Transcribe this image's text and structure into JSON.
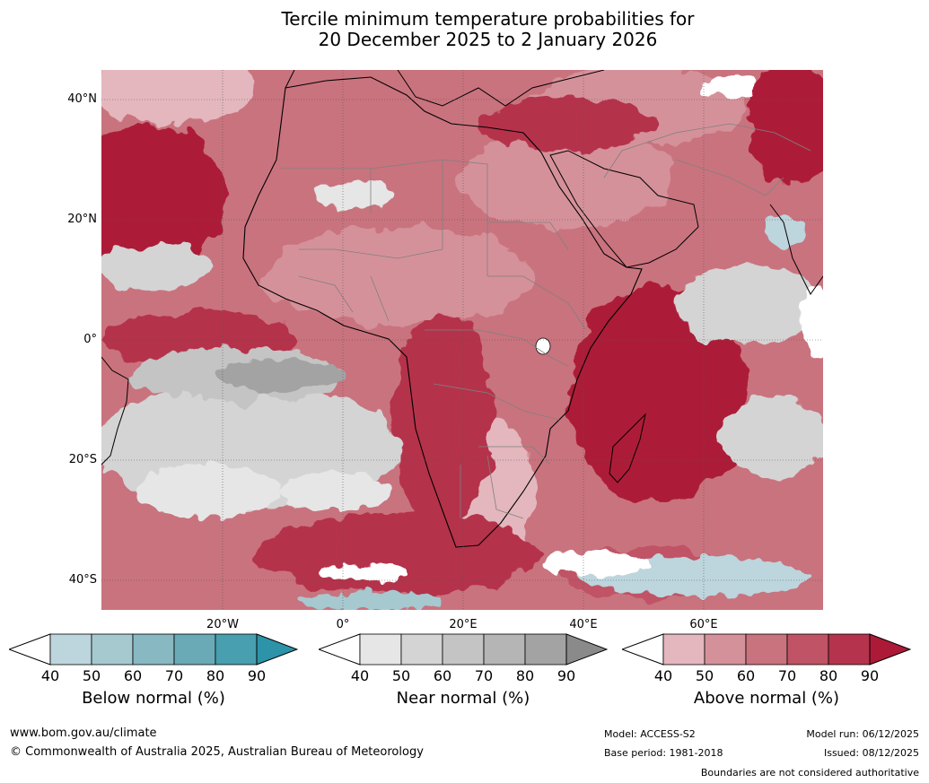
{
  "title": {
    "line1": "Tercile minimum temperature probabilities for",
    "line2": "20 December 2025 to 2 January 2026"
  },
  "map": {
    "lat_labels": [
      "40°N",
      "20°N",
      "0°",
      "20°S",
      "40°S"
    ],
    "lon_labels": [
      "20°W",
      "0°",
      "20°E",
      "40°E",
      "60°E"
    ]
  },
  "colorbars": [
    {
      "name": "below",
      "label": "Below normal (%)",
      "ticks": [
        "40",
        "50",
        "60",
        "70",
        "80",
        "90"
      ],
      "colors": [
        "#bdd5dc",
        "#a6c9d0",
        "#88b8c2",
        "#6aaab6",
        "#479faf",
        "#2c93a8"
      ]
    },
    {
      "name": "near",
      "label": "Near normal (%)",
      "ticks": [
        "40",
        "50",
        "60",
        "70",
        "80",
        "90"
      ],
      "colors": [
        "#e6e6e6",
        "#d4d4d4",
        "#c4c4c4",
        "#b5b5b5",
        "#a3a3a3",
        "#8a8a8a"
      ]
    },
    {
      "name": "above",
      "label": "Above normal (%)",
      "ticks": [
        "40",
        "50",
        "60",
        "70",
        "80",
        "90"
      ],
      "colors": [
        "#e3b7bd",
        "#d5919a",
        "#c9737e",
        "#c05365",
        "#b5334c",
        "#ac1a38"
      ]
    }
  ],
  "footer": {
    "url": "www.bom.gov.au/climate",
    "copyright": "© Commonwealth of Australia 2025, Australian Bureau of Meteorology",
    "model": "Model: ACCESS-S2",
    "base_period": "Base period: 1981-2018",
    "model_run": "Model run: 06/12/2025",
    "issued": "Issued: 08/12/2025",
    "disclaimer": "Boundaries are not considered authoritative"
  }
}
